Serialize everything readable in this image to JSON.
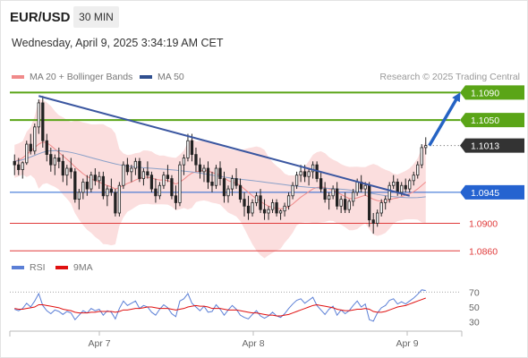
{
  "header": {
    "symbol": "EUR/USD",
    "timeframe": "30 MIN",
    "datetime": "Wednesday, April 9, 2025 3:34:19 AM CET"
  },
  "legend_main": [
    {
      "label": "MA 20 + Bollinger Bands",
      "color": "#f08a8a"
    },
    {
      "label": "MA 50",
      "color": "#2f4f8f"
    }
  ],
  "credit": "Research © 2025 Trading Central",
  "legend_rsi": [
    {
      "label": "RSI",
      "color": "#5b7fd6"
    },
    {
      "label": "9MA",
      "color": "#e01010"
    }
  ],
  "colors": {
    "resistance": "#5aa517",
    "current": "#333333",
    "pivot": "#2563d0",
    "support": "#e03a3a",
    "arrow": "#2563c4",
    "trendline": "#3a56a0",
    "band": "#fbdede"
  },
  "chart_data": {
    "type": "candlestick",
    "symbol": "EUR/USD",
    "x_ticks": [
      "Apr 7",
      "Apr 8",
      "Apr 9"
    ],
    "price_ylim": [
      1.085,
      1.111
    ],
    "price_levels": [
      {
        "value": 1.109,
        "label": "1.1090",
        "role": "resistance"
      },
      {
        "value": 1.105,
        "label": "1.1050",
        "role": "resistance"
      },
      {
        "value": 1.1013,
        "label": "1.1013",
        "role": "current"
      },
      {
        "value": 1.0945,
        "label": "1.0945",
        "role": "pivot"
      },
      {
        "value": 1.09,
        "label": "1.0900",
        "role": "support"
      },
      {
        "value": 1.086,
        "label": "1.0860",
        "role": "support"
      }
    ],
    "rsi_ticks": [
      70,
      50,
      30
    ],
    "rsi_ylim": [
      20,
      80
    ],
    "candles": [
      [
        1.099,
        1.1,
        1.097,
        1.0985
      ],
      [
        1.0985,
        1.0995,
        1.097,
        1.0978
      ],
      [
        1.0978,
        1.099,
        1.0965,
        1.0988
      ],
      [
        1.0988,
        1.102,
        1.0985,
        1.1015
      ],
      [
        1.1015,
        1.103,
        1.1,
        1.1005
      ],
      [
        1.1005,
        1.1045,
        1.1,
        1.104
      ],
      [
        1.104,
        1.108,
        1.103,
        1.1075
      ],
      [
        1.1075,
        1.1085,
        1.101,
        1.102
      ],
      [
        1.102,
        1.103,
        1.099,
        1.1
      ],
      [
        1.1,
        1.101,
        1.0975,
        1.0985
      ],
      [
        1.0985,
        1.1,
        1.097,
        1.0995
      ],
      [
        1.0995,
        1.101,
        1.098,
        1.099
      ],
      [
        1.099,
        1.1,
        1.096,
        1.097
      ],
      [
        1.097,
        1.0985,
        1.0955,
        1.098
      ],
      [
        1.098,
        1.0995,
        1.0965,
        1.0975
      ],
      [
        1.0975,
        1.098,
        1.093,
        1.0935
      ],
      [
        1.0935,
        1.095,
        1.092,
        1.0945
      ],
      [
        1.0945,
        1.0965,
        1.0935,
        1.096
      ],
      [
        1.096,
        1.097,
        1.094,
        1.095
      ],
      [
        1.095,
        1.0975,
        1.0945,
        1.097
      ],
      [
        1.097,
        1.098,
        1.0955,
        1.0962
      ],
      [
        1.0962,
        1.0975,
        1.095,
        1.0968
      ],
      [
        1.0968,
        1.0975,
        1.0935,
        1.094
      ],
      [
        1.094,
        1.0955,
        1.0925,
        1.095
      ],
      [
        1.095,
        1.0965,
        1.094,
        1.0945
      ],
      [
        1.0945,
        1.095,
        1.091,
        1.0915
      ],
      [
        1.0915,
        1.096,
        1.091,
        1.0955
      ],
      [
        1.0955,
        1.099,
        1.095,
        1.0985
      ],
      [
        1.0985,
        1.0995,
        1.097,
        1.0975
      ],
      [
        1.0975,
        1.0985,
        1.096,
        1.098
      ],
      [
        1.098,
        1.0995,
        1.097,
        1.099
      ],
      [
        1.099,
        1.0995,
        1.096,
        1.0965
      ],
      [
        1.0965,
        1.098,
        1.0955,
        1.0975
      ],
      [
        1.0975,
        1.099,
        1.0965,
        1.097
      ],
      [
        1.097,
        1.0975,
        1.0945,
        1.095
      ],
      [
        1.095,
        1.0965,
        1.093,
        1.094
      ],
      [
        1.094,
        1.096,
        1.0935,
        1.0955
      ],
      [
        1.0955,
        1.0975,
        1.095,
        1.097
      ],
      [
        1.097,
        1.0985,
        1.096,
        1.0965
      ],
      [
        1.0965,
        1.097,
        1.0935,
        1.094
      ],
      [
        1.094,
        1.0955,
        1.092,
        1.093
      ],
      [
        1.093,
        1.099,
        1.0925,
        1.0985
      ],
      [
        1.0985,
        1.1,
        1.097,
        1.0995
      ],
      [
        1.0995,
        1.103,
        1.099,
        1.102
      ],
      [
        1.102,
        1.103,
        1.099,
        1.1
      ],
      [
        1.1,
        1.101,
        1.0975,
        1.0985
      ],
      [
        1.0985,
        1.0995,
        1.0965,
        1.0975
      ],
      [
        1.0975,
        1.0985,
        1.096,
        1.098
      ],
      [
        1.098,
        1.099,
        1.095,
        1.096
      ],
      [
        1.096,
        1.0975,
        1.0945,
        1.0955
      ],
      [
        1.0955,
        1.0985,
        1.095,
        1.098
      ],
      [
        1.098,
        1.099,
        1.0955,
        1.0965
      ],
      [
        1.0965,
        1.0975,
        1.093,
        1.094
      ],
      [
        1.094,
        1.0955,
        1.093,
        1.095
      ],
      [
        1.095,
        1.097,
        1.094,
        1.0965
      ],
      [
        1.0965,
        1.098,
        1.095,
        1.0955
      ],
      [
        1.0955,
        1.0965,
        1.093,
        1.0935
      ],
      [
        1.0935,
        1.0945,
        1.091,
        1.0925
      ],
      [
        1.0925,
        1.094,
        1.0905,
        1.0915
      ],
      [
        1.0915,
        1.0935,
        1.091,
        1.093
      ],
      [
        1.093,
        1.0945,
        1.0925,
        1.094
      ],
      [
        1.094,
        1.095,
        1.0915,
        1.092
      ],
      [
        1.092,
        1.0935,
        1.0905,
        1.0915
      ],
      [
        1.0915,
        1.0925,
        1.0905,
        1.092
      ],
      [
        1.092,
        1.0935,
        1.0915,
        1.093
      ],
      [
        1.093,
        1.0935,
        1.091,
        1.0915
      ],
      [
        1.0915,
        1.092,
        1.0905,
        1.0918
      ],
      [
        1.0918,
        1.093,
        1.091,
        1.0925
      ],
      [
        1.0925,
        1.0945,
        1.092,
        1.094
      ],
      [
        1.094,
        1.096,
        1.0935,
        1.0955
      ],
      [
        1.0955,
        1.0975,
        1.095,
        1.097
      ],
      [
        1.097,
        1.0985,
        1.096,
        1.0975
      ],
      [
        1.0975,
        1.0985,
        1.096,
        1.0968
      ],
      [
        1.0968,
        1.098,
        1.0955,
        1.0975
      ],
      [
        1.0975,
        1.099,
        1.0965,
        1.0985
      ],
      [
        1.0985,
        1.099,
        1.096,
        1.0965
      ],
      [
        1.0965,
        1.0975,
        1.0945,
        1.095
      ],
      [
        1.095,
        1.096,
        1.093,
        1.0935
      ],
      [
        1.0935,
        1.0945,
        1.092,
        1.094
      ],
      [
        1.094,
        1.0955,
        1.0935,
        1.095
      ],
      [
        1.095,
        1.096,
        1.092,
        1.0925
      ],
      [
        1.0925,
        1.094,
        1.0915,
        1.0935
      ],
      [
        1.0935,
        1.0945,
        1.0915,
        1.092
      ],
      [
        1.092,
        1.0935,
        1.0915,
        1.0932
      ],
      [
        1.0932,
        1.095,
        1.0925,
        1.0945
      ],
      [
        1.0945,
        1.0965,
        1.094,
        1.096
      ],
      [
        1.096,
        1.097,
        1.0945,
        1.095
      ],
      [
        1.095,
        1.096,
        1.094,
        1.0955
      ],
      [
        1.0955,
        1.096,
        1.0895,
        1.0905
      ],
      [
        1.0905,
        1.0915,
        1.0885,
        1.09
      ],
      [
        1.09,
        1.092,
        1.0895,
        1.0915
      ],
      [
        1.0915,
        1.0935,
        1.091,
        1.093
      ],
      [
        1.093,
        1.094,
        1.092,
        1.0935
      ],
      [
        1.0935,
        1.096,
        1.093,
        1.0955
      ],
      [
        1.0955,
        1.097,
        1.095,
        1.096
      ],
      [
        1.096,
        1.0965,
        1.094,
        1.0945
      ],
      [
        1.0945,
        1.096,
        1.094,
        1.0955
      ],
      [
        1.0955,
        1.0965,
        1.0945,
        1.095
      ],
      [
        1.095,
        1.0965,
        1.0945,
        1.0962
      ],
      [
        1.0962,
        1.0975,
        1.0955,
        1.097
      ],
      [
        1.097,
        1.099,
        1.0965,
        1.0985
      ],
      [
        1.0985,
        1.1015,
        1.098,
        1.101
      ],
      [
        1.101,
        1.1025,
        1.1,
        1.1013
      ]
    ],
    "rsi": [
      47,
      45,
      48,
      55,
      50,
      58,
      68,
      52,
      45,
      41,
      46,
      44,
      40,
      44,
      42,
      33,
      39,
      45,
      42,
      48,
      45,
      47,
      39,
      45,
      43,
      34,
      48,
      58,
      52,
      55,
      58,
      48,
      52,
      50,
      43,
      39,
      47,
      53,
      49,
      41,
      37,
      58,
      61,
      68,
      55,
      50,
      45,
      51,
      43,
      44,
      53,
      47,
      39,
      46,
      52,
      47,
      39,
      36,
      34,
      40,
      45,
      38,
      35,
      38,
      43,
      38,
      36,
      41,
      48,
      54,
      59,
      61,
      55,
      59,
      63,
      52,
      46,
      40,
      47,
      51,
      39,
      46,
      41,
      45,
      52,
      58,
      50,
      54,
      33,
      31,
      42,
      49,
      52,
      59,
      61,
      54,
      57,
      54,
      58,
      62,
      67,
      73,
      72
    ],
    "rsi_ma": [
      48,
      47,
      47,
      48,
      49,
      50,
      53,
      53,
      52,
      51,
      50,
      49,
      47,
      46,
      45,
      43,
      42,
      42,
      42,
      43,
      43,
      44,
      44,
      44,
      44,
      43,
      44,
      46,
      46,
      47,
      48,
      48,
      49,
      50,
      50,
      49,
      48,
      48,
      48,
      47,
      46,
      47,
      48,
      50,
      51,
      52,
      51,
      51,
      50,
      48,
      48,
      48,
      47,
      46,
      46,
      46,
      45,
      44,
      43,
      42,
      42,
      41,
      40,
      39,
      39,
      38,
      38,
      39,
      40,
      42,
      44,
      46,
      48,
      50,
      52,
      53,
      52,
      51,
      50,
      49,
      47,
      46,
      45,
      45,
      46,
      47,
      47,
      48,
      47,
      44,
      43,
      43,
      44,
      46,
      48,
      50,
      51,
      52,
      54,
      56,
      58,
      60,
      62
    ],
    "ma20": [
      1.099,
      1.0992,
      1.0995,
      1.1,
      1.1005,
      1.101,
      1.1015,
      1.1018,
      1.1017,
      1.1013,
      1.1008,
      1.1003,
      1.0998,
      1.0993,
      1.0988,
      1.0982,
      1.0977,
      1.0972,
      1.0968,
      1.0965,
      1.0962,
      1.096,
      1.0957,
      1.0955,
      1.0953,
      1.095,
      1.0952,
      1.0955,
      1.0958,
      1.096,
      1.0963,
      1.0965,
      1.0967,
      1.0967,
      1.0966,
      1.0964,
      1.0963,
      1.0963,
      1.0962,
      1.096,
      1.0957,
      1.096,
      1.0964,
      1.0969,
      1.0973,
      1.0975,
      1.0976,
      1.0977,
      1.0976,
      1.0974,
      1.0972,
      1.097,
      1.0966,
      1.0962,
      1.096,
      1.0958,
      1.0955,
      1.095,
      1.0945,
      1.094,
      1.0936,
      1.0932,
      1.0928,
      1.0925,
      1.0923,
      1.0922,
      1.0921,
      1.0922,
      1.0924,
      1.0928,
      1.0933,
      1.0938,
      1.0942,
      1.0946,
      1.095,
      1.0952,
      1.0953,
      1.0952,
      1.095,
      1.0948,
      1.0945,
      1.0942,
      1.0939,
      1.0936,
      1.0936,
      1.0937,
      1.0939,
      1.0941,
      1.0938,
      1.0935,
      1.0933,
      1.0932,
      1.0932,
      1.0934,
      1.0936,
      1.0937,
      1.0939,
      1.0941,
      1.0943,
      1.0946,
      1.095,
      1.0955,
      1.096
    ]
  }
}
